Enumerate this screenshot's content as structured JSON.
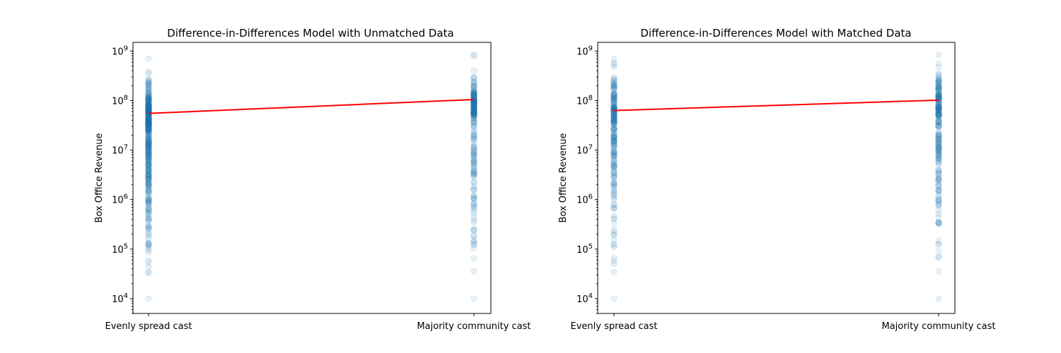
{
  "chart_data": [
    {
      "type": "scatter",
      "title": "Difference-in-Differences Model with Unmatched Data",
      "xlabel": "",
      "ylabel": "Box Office Revenue",
      "yscale": "log",
      "ylim": [
        5000,
        1500000000
      ],
      "categories": [
        "Evenly spread cast",
        "Majority community cast"
      ],
      "yticks": [
        {
          "value": 10000,
          "base": "10",
          "exp": "4"
        },
        {
          "value": 100000,
          "base": "10",
          "exp": "5"
        },
        {
          "value": 1000000,
          "base": "10",
          "exp": "6"
        },
        {
          "value": 10000000,
          "base": "10",
          "exp": "7"
        },
        {
          "value": 100000000,
          "base": "10",
          "exp": "8"
        },
        {
          "value": 1000000000,
          "base": "10",
          "exp": "9"
        }
      ],
      "series": [
        {
          "category": "Evenly spread cast",
          "ymin": 10000,
          "ymax": 700000000,
          "center": 30000000,
          "count": 420
        },
        {
          "category": "Majority community cast",
          "ymin": 10000,
          "ymax": 850000000,
          "center": 50000000,
          "count": 220
        }
      ],
      "fit_line": {
        "y_start": 55000000,
        "y_end": 105000000
      },
      "color_points": "#1f77b4",
      "color_line": "#ff0000",
      "point_opacity": 0.1,
      "grid": false
    },
    {
      "type": "scatter",
      "title": "Difference-in-Differences Model with Matched Data",
      "xlabel": "",
      "ylabel": "Box Office Revenue",
      "yscale": "log",
      "ylim": [
        5000,
        1500000000
      ],
      "categories": [
        "Evenly spread cast",
        "Majority community cast"
      ],
      "yticks": [
        {
          "value": 10000,
          "base": "10",
          "exp": "4"
        },
        {
          "value": 100000,
          "base": "10",
          "exp": "5"
        },
        {
          "value": 1000000,
          "base": "10",
          "exp": "6"
        },
        {
          "value": 10000000,
          "base": "10",
          "exp": "7"
        },
        {
          "value": 100000000,
          "base": "10",
          "exp": "8"
        },
        {
          "value": 1000000000,
          "base": "10",
          "exp": "9"
        }
      ],
      "series": [
        {
          "category": "Evenly spread cast",
          "ymin": 10000,
          "ymax": 700000000,
          "center": 35000000,
          "count": 220
        },
        {
          "category": "Majority community cast",
          "ymin": 10000,
          "ymax": 850000000,
          "center": 50000000,
          "count": 220
        }
      ],
      "fit_line": {
        "y_start": 63000000,
        "y_end": 102000000
      },
      "color_points": "#1f77b4",
      "color_line": "#ff0000",
      "point_opacity": 0.1,
      "grid": false
    }
  ]
}
